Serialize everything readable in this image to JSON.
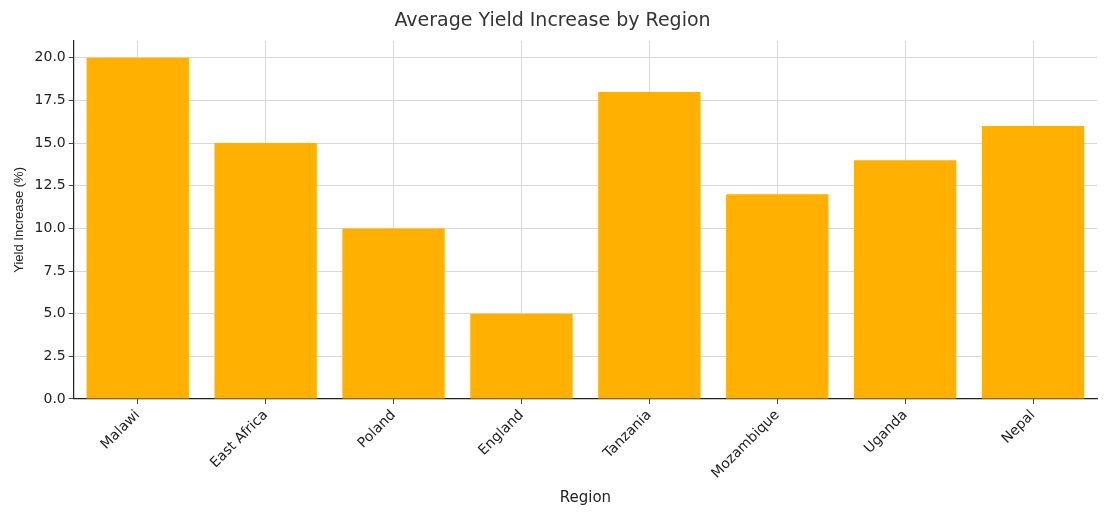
{
  "chart_data": {
    "type": "bar",
    "title": "Average Yield Increase by Region",
    "xlabel": "Region",
    "ylabel": "Yield Increase (%)",
    "categories": [
      "Malawi",
      "East Africa",
      "Poland",
      "England",
      "Tanzania",
      "Mozambique",
      "Uganda",
      "Nepal"
    ],
    "values": [
      20,
      15,
      10,
      5,
      18,
      12,
      14,
      16
    ],
    "color": "#ffb000",
    "ylim": [
      0,
      21
    ],
    "yticks": [
      {
        "value": 0,
        "label": "0.0"
      },
      {
        "value": 2.5,
        "label": "2.5"
      },
      {
        "value": 5,
        "label": "5.0"
      },
      {
        "value": 7.5,
        "label": "7.5"
      },
      {
        "value": 10,
        "label": "10.0"
      },
      {
        "value": 12.5,
        "label": "12.5"
      },
      {
        "value": 15,
        "label": "15.0"
      },
      {
        "value": 17.5,
        "label": "17.5"
      },
      {
        "value": 20,
        "label": "20.0"
      }
    ],
    "grid": true
  }
}
